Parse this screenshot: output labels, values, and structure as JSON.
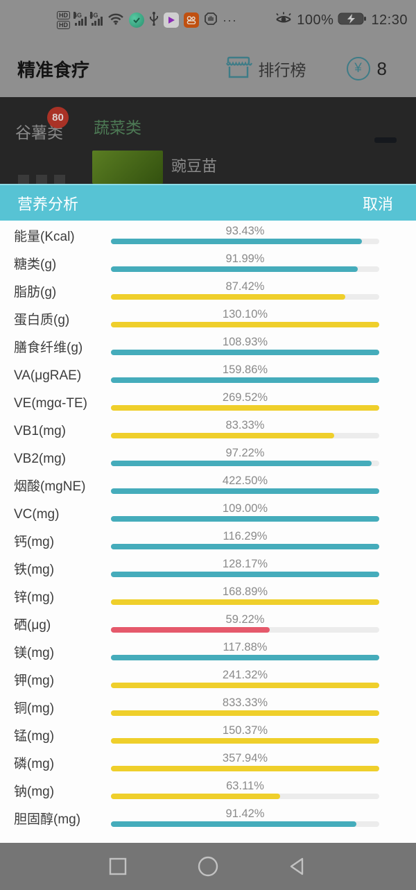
{
  "status_bar": {
    "time": "12:30",
    "battery": "100%",
    "hd1": "HD",
    "hd2": "HD",
    "network": "4G",
    "more": "···",
    "icon_names": [
      "hd-badges",
      "signal-sim1",
      "signal-sim2",
      "wifi",
      "green-app",
      "usb",
      "video-play-app",
      "kuaishou-app",
      "do-not-disturb",
      "more-dots",
      "eye-comfort",
      "battery-charging"
    ]
  },
  "app_header": {
    "title": "精准食疗",
    "ranking": "排行榜",
    "coin_symbol": "¥",
    "coin_count": "8"
  },
  "background_page": {
    "category_grain": "谷薯类",
    "category_grain_badge": "80",
    "category_vegetable": "蔬菜类",
    "food_item": "豌豆苗"
  },
  "sheet": {
    "title": "营养分析",
    "cancel": "取消"
  },
  "palette": {
    "teal": "#45acbb",
    "yellow": "#efcf2b",
    "red": "#e5596b",
    "track": "#ececec",
    "accent": "#57c3d4"
  },
  "nutrients": [
    {
      "label": "能量(Kcal)",
      "value": "93.43%",
      "pct": 93.43,
      "color": "teal"
    },
    {
      "label": "糖类(g)",
      "value": "91.99%",
      "pct": 91.99,
      "color": "teal"
    },
    {
      "label": "脂肪(g)",
      "value": "87.42%",
      "pct": 87.42,
      "color": "yellow"
    },
    {
      "label": "蛋白质(g)",
      "value": "130.10%",
      "pct": 130.1,
      "color": "yellow"
    },
    {
      "label": "膳食纤维(g)",
      "value": "108.93%",
      "pct": 108.93,
      "color": "teal"
    },
    {
      "label": "VA(μgRAE)",
      "value": "159.86%",
      "pct": 159.86,
      "color": "teal"
    },
    {
      "label": "VE(mgα-TE)",
      "value": "269.52%",
      "pct": 269.52,
      "color": "yellow"
    },
    {
      "label": "VB1(mg)",
      "value": "83.33%",
      "pct": 83.33,
      "color": "yellow"
    },
    {
      "label": "VB2(mg)",
      "value": "97.22%",
      "pct": 97.22,
      "color": "teal"
    },
    {
      "label": "烟酸(mgNE)",
      "value": "422.50%",
      "pct": 422.5,
      "color": "teal"
    },
    {
      "label": "VC(mg)",
      "value": "109.00%",
      "pct": 109.0,
      "color": "teal"
    },
    {
      "label": "钙(mg)",
      "value": "116.29%",
      "pct": 116.29,
      "color": "teal"
    },
    {
      "label": "铁(mg)",
      "value": "128.17%",
      "pct": 128.17,
      "color": "teal"
    },
    {
      "label": "锌(mg)",
      "value": "168.89%",
      "pct": 168.89,
      "color": "yellow"
    },
    {
      "label": "硒(μg)",
      "value": "59.22%",
      "pct": 59.22,
      "color": "red"
    },
    {
      "label": "镁(mg)",
      "value": "117.88%",
      "pct": 117.88,
      "color": "teal"
    },
    {
      "label": "钾(mg)",
      "value": "241.32%",
      "pct": 241.32,
      "color": "yellow"
    },
    {
      "label": "铜(mg)",
      "value": "833.33%",
      "pct": 833.33,
      "color": "yellow"
    },
    {
      "label": "锰(mg)",
      "value": "150.37%",
      "pct": 150.37,
      "color": "yellow"
    },
    {
      "label": "磷(mg)",
      "value": "357.94%",
      "pct": 357.94,
      "color": "yellow"
    },
    {
      "label": "钠(mg)",
      "value": "63.11%",
      "pct": 63.11,
      "color": "yellow"
    },
    {
      "label": "胆固醇(mg)",
      "value": "91.42%",
      "pct": 91.42,
      "color": "teal"
    }
  ],
  "chart_data": {
    "type": "bar",
    "title": "营养分析",
    "unit": "%",
    "orientation": "horizontal",
    "bar_scale_max": 100,
    "categories": [
      "能量(Kcal)",
      "糖类(g)",
      "脂肪(g)",
      "蛋白质(g)",
      "膳食纤维(g)",
      "VA(μgRAE)",
      "VE(mgα-TE)",
      "VB1(mg)",
      "VB2(mg)",
      "烟酸(mgNE)",
      "VC(mg)",
      "钙(mg)",
      "铁(mg)",
      "锌(mg)",
      "硒(μg)",
      "镁(mg)",
      "钾(mg)",
      "铜(mg)",
      "锰(mg)",
      "磷(mg)",
      "钠(mg)",
      "胆固醇(mg)"
    ],
    "values": [
      93.43,
      91.99,
      87.42,
      130.1,
      108.93,
      159.86,
      269.52,
      83.33,
      97.22,
      422.5,
      109.0,
      116.29,
      128.17,
      168.89,
      59.22,
      117.88,
      241.32,
      833.33,
      150.37,
      357.94,
      63.11,
      91.42
    ],
    "bar_colors": [
      "teal",
      "teal",
      "yellow",
      "yellow",
      "teal",
      "teal",
      "yellow",
      "yellow",
      "teal",
      "teal",
      "teal",
      "teal",
      "teal",
      "yellow",
      "red",
      "teal",
      "yellow",
      "yellow",
      "yellow",
      "yellow",
      "yellow",
      "teal"
    ],
    "legend": "off",
    "grid": "off"
  },
  "nav_bar": {
    "icon_names": [
      "recents-square-icon",
      "home-circle-icon",
      "back-triangle-icon"
    ]
  }
}
